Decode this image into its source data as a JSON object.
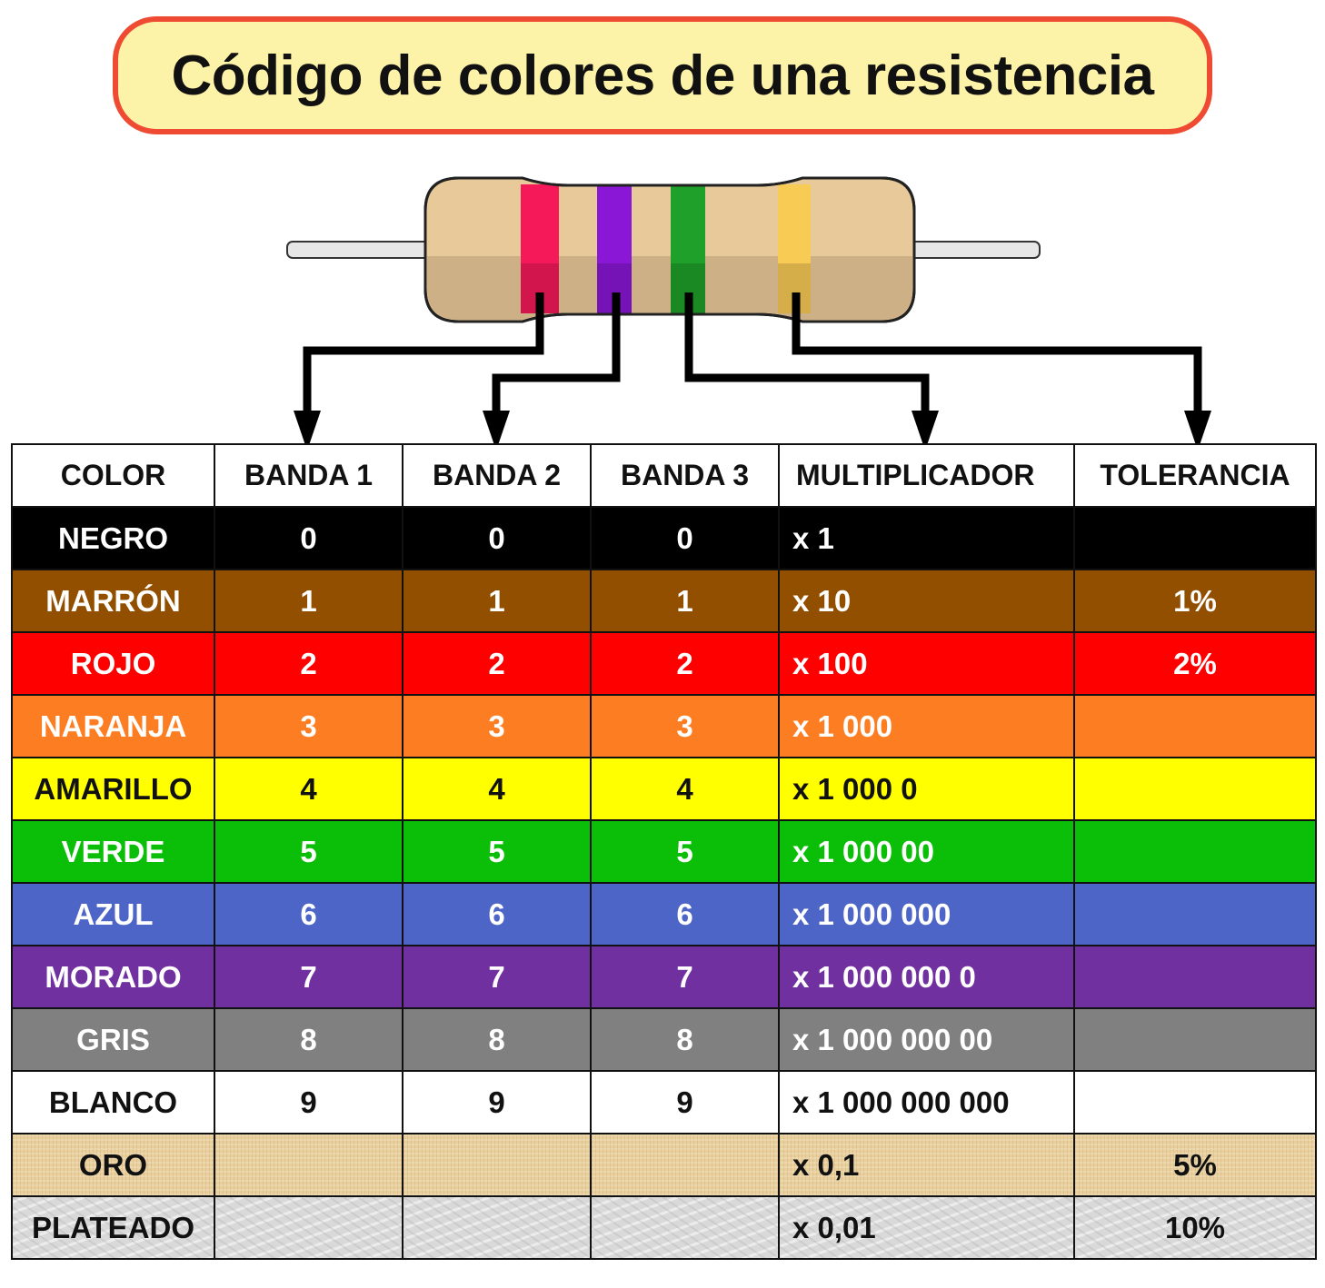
{
  "title": "Código de colores de una resistencia",
  "resistor": {
    "body_color": "#e8c99a",
    "body_shadow": "#b89b78",
    "band_colors": [
      "#f5195a",
      "#8a17d6",
      "#1fa02a",
      "#f8cb55"
    ]
  },
  "table": {
    "headers": [
      "COLOR",
      "BANDA 1",
      "BANDA 2",
      "BANDA 3",
      "MULTIPLICADOR",
      "TOLERANCIA"
    ],
    "rows": [
      {
        "color": "NEGRO",
        "b1": "0",
        "b2": "0",
        "b3": "0",
        "mult": "x 1",
        "tol": "",
        "bg": "#000000",
        "fg": "#ffffff"
      },
      {
        "color": "MARRÓN",
        "b1": "1",
        "b2": "1",
        "b3": "1",
        "mult": "x 10",
        "tol": "1%",
        "bg": "#924f00",
        "fg": "#ffffff"
      },
      {
        "color": "ROJO",
        "b1": "2",
        "b2": "2",
        "b3": "2",
        "mult": "x 100",
        "tol": "2%",
        "bg": "#ff0000",
        "fg": "#ffffff"
      },
      {
        "color": "NARANJA",
        "b1": "3",
        "b2": "3",
        "b3": "3",
        "mult": "x 1 000",
        "tol": "",
        "bg": "#fd7e22",
        "fg": "#ffffff"
      },
      {
        "color": "AMARILLO",
        "b1": "4",
        "b2": "4",
        "b3": "4",
        "mult": "x 1 000 0",
        "tol": "",
        "bg": "#ffff00",
        "fg": "#111111"
      },
      {
        "color": "VERDE",
        "b1": "5",
        "b2": "5",
        "b3": "5",
        "mult": "x 1 000 00",
        "tol": "",
        "bg": "#0bbf08",
        "fg": "#ffffff"
      },
      {
        "color": "AZUL",
        "b1": "6",
        "b2": "6",
        "b3": "6",
        "mult": "x 1 000 000",
        "tol": "",
        "bg": "#4e65c8",
        "fg": "#ffffff"
      },
      {
        "color": "MORADO",
        "b1": "7",
        "b2": "7",
        "b3": "7",
        "mult": "x 1 000 000 0",
        "tol": "",
        "bg": "#7030a0",
        "fg": "#ffffff"
      },
      {
        "color": "GRIS",
        "b1": "8",
        "b2": "8",
        "b3": "8",
        "mult": "x 1 000 000 00",
        "tol": "",
        "bg": "#808080",
        "fg": "#ffffff"
      },
      {
        "color": "BLANCO",
        "b1": "9",
        "b2": "9",
        "b3": "9",
        "mult": "x 1 000 000 000",
        "tol": "",
        "bg": "#ffffff",
        "fg": "#111111"
      },
      {
        "color": "ORO",
        "b1": "",
        "b2": "",
        "b3": "",
        "mult": "x 0,1",
        "tol": "5%",
        "bg": "#e9cf9c",
        "fg": "#111111"
      },
      {
        "color": "PLATEADO",
        "b1": "",
        "b2": "",
        "b3": "",
        "mult": "x 0,01",
        "tol": "10%",
        "bg": "#d9d9d9",
        "fg": "#111111"
      }
    ]
  }
}
